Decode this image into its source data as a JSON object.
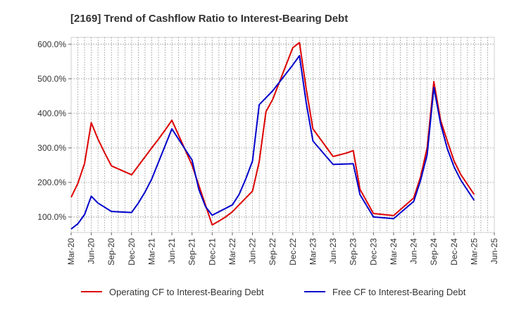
{
  "chart_data": {
    "type": "line",
    "title": "[2169]  Trend of Cashflow Ratio to Interest-Bearing Debt",
    "xlabel": "",
    "ylabel": "",
    "x_tick_labels": [
      "Mar-20",
      "Jun-20",
      "Sep-20",
      "Dec-20",
      "Mar-21",
      "Jun-21",
      "Sep-21",
      "Dec-21",
      "Mar-22",
      "Jun-22",
      "Sep-22",
      "Dec-22",
      "Mar-23",
      "Jun-23",
      "Sep-23",
      "Dec-23",
      "Mar-24",
      "Jun-24",
      "Sep-24",
      "Dec-24",
      "Mar-25",
      "Jun-25"
    ],
    "y_ticks": [
      100,
      200,
      300,
      400,
      500,
      600
    ],
    "y_tick_labels": [
      "100.0%",
      "200.0%",
      "300.0%",
      "400.0%",
      "500.0%",
      "600.0%"
    ],
    "ylim": [
      55,
      620
    ],
    "x_index_range": [
      0,
      63
    ],
    "grid": true,
    "legend_position": "bottom",
    "series": [
      {
        "name": "Operating CF to Interest-Bearing Debt",
        "color": "#dd0000",
        "x": [
          0,
          1,
          2,
          3,
          4,
          5,
          6,
          9,
          12,
          13,
          14,
          15,
          18,
          21,
          22,
          23,
          24,
          27,
          28,
          29,
          30,
          33,
          34,
          35,
          36,
          39,
          40,
          41,
          42,
          43,
          45,
          46,
          47,
          48,
          51,
          52,
          53,
          54,
          55,
          56,
          57,
          58,
          60
        ],
        "y": [
          157,
          197,
          255,
          373,
          325,
          285,
          248,
          222,
          300,
          325,
          352,
          380,
          250,
          77,
          88,
          100,
          115,
          175,
          260,
          405,
          440,
          590,
          605,
          470,
          355,
          275,
          280,
          285,
          292,
          180,
          110,
          108,
          106,
          104,
          155,
          215,
          300,
          492,
          380,
          320,
          262,
          223,
          165
        ]
      },
      {
        "name": "Free CF to Interest-Bearing Debt",
        "color": "#0000cc",
        "x": [
          0,
          1,
          2,
          3,
          4,
          5,
          6,
          9,
          10,
          11,
          12,
          15,
          18,
          19,
          20,
          21,
          24,
          25,
          26,
          27,
          28,
          30,
          33,
          34,
          35,
          36,
          39,
          42,
          43,
          45,
          48,
          51,
          52,
          53,
          54,
          55,
          56,
          57,
          58,
          60
        ],
        "y": [
          65,
          80,
          107,
          160,
          140,
          128,
          116,
          113,
          140,
          172,
          210,
          355,
          265,
          180,
          130,
          105,
          135,
          165,
          210,
          262,
          425,
          465,
          540,
          567,
          430,
          320,
          252,
          254,
          165,
          100,
          95,
          145,
          205,
          280,
          475,
          370,
          298,
          245,
          207,
          148
        ]
      }
    ]
  }
}
